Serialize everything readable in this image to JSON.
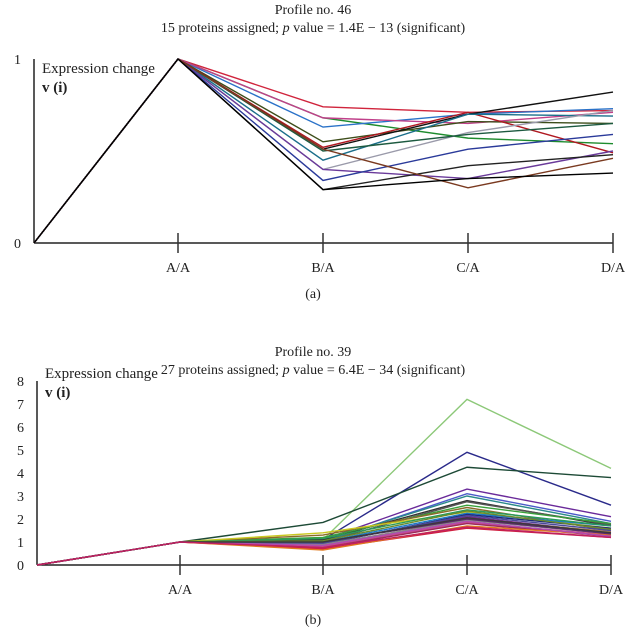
{
  "chart_data": [
    {
      "type": "line",
      "panel_label": "(a)",
      "title": "Profile no. 46",
      "subtitle_prefix": "15 proteins assigned; ",
      "subtitle_p": "p",
      "subtitle_suffix": " value = 1.4E − 13 (significant)",
      "ylabel": "Expression change",
      "ylabel2": "v (i)",
      "ylim": [
        0,
        1
      ],
      "yticks": [
        "0",
        "1"
      ],
      "categories": [
        "",
        "A/A",
        "B/A",
        "C/A",
        "D/A"
      ],
      "series": [
        {
          "color": "#d0243c",
          "values": [
            0,
            1,
            0.74,
            0.71,
            0.72
          ]
        },
        {
          "color": "#1e8c2e",
          "values": [
            0,
            1,
            0.68,
            0.57,
            0.54
          ]
        },
        {
          "color": "#2a72c8",
          "values": [
            0,
            1,
            0.63,
            0.7,
            0.73
          ]
        },
        {
          "color": "#c0408a",
          "values": [
            0,
            1,
            0.68,
            0.65,
            0.71
          ]
        },
        {
          "color": "#3d4d1a",
          "values": [
            0,
            1,
            0.55,
            0.66,
            0.65
          ]
        },
        {
          "color": "#b01820",
          "values": [
            0,
            1,
            0.52,
            0.71,
            0.49
          ]
        },
        {
          "color": "#111111",
          "values": [
            0,
            1,
            0.51,
            0.7,
            0.82
          ]
        },
        {
          "color": "#1a6e8a",
          "values": [
            0,
            1,
            0.45,
            0.7,
            0.69
          ]
        },
        {
          "color": "#9a9aaa",
          "values": [
            0,
            1,
            0.4,
            0.6,
            0.72
          ]
        },
        {
          "color": "#1d5a40",
          "values": [
            0,
            1,
            0.5,
            0.59,
            0.65
          ]
        },
        {
          "color": "#6a3a9a",
          "values": [
            0,
            1,
            0.4,
            0.35,
            0.5
          ]
        },
        {
          "color": "#2a3a9a",
          "values": [
            0,
            1,
            0.34,
            0.51,
            0.59
          ]
        },
        {
          "color": "#222222",
          "values": [
            0,
            1,
            0.29,
            0.42,
            0.48
          ]
        },
        {
          "color": "#7a3a20",
          "values": [
            0,
            1,
            0.51,
            0.3,
            0.46
          ]
        },
        {
          "color": "#000000",
          "values": [
            0,
            1,
            0.29,
            0.35,
            0.38
          ]
        }
      ]
    },
    {
      "type": "line",
      "panel_label": "(b)",
      "title": "Profile no. 39",
      "subtitle_prefix": "27 proteins assigned; ",
      "subtitle_p": "p",
      "subtitle_suffix": " value = 6.4E − 34 (significant)",
      "ylabel": "Expression change",
      "ylabel2": "v (i)",
      "ylim": [
        0,
        8
      ],
      "yticks": [
        "0",
        "1",
        "2",
        "3",
        "4",
        "5",
        "6",
        "7",
        "8"
      ],
      "categories": [
        "",
        "A/A",
        "B/A",
        "C/A",
        "D/A"
      ],
      "series": [
        {
          "color": "#8cc878",
          "values": [
            0,
            1,
            1.1,
            7.2,
            4.2
          ]
        },
        {
          "color": "#2a2a8a",
          "values": [
            0,
            1,
            1.1,
            4.9,
            2.6
          ]
        },
        {
          "color": "#1d4a36",
          "values": [
            0,
            1,
            1.85,
            4.25,
            3.8
          ]
        },
        {
          "color": "#6a2a9a",
          "values": [
            0,
            1,
            1.1,
            3.3,
            2.1
          ]
        },
        {
          "color": "#4a5ac8",
          "values": [
            0,
            1,
            1.0,
            3.1,
            1.9
          ]
        },
        {
          "color": "#2a8a8a",
          "values": [
            0,
            1,
            1.05,
            3.0,
            1.8
          ]
        },
        {
          "color": "#333333",
          "values": [
            0,
            1,
            1.1,
            2.8,
            1.7
          ]
        },
        {
          "color": "#555555",
          "values": [
            0,
            1,
            1.0,
            2.75,
            1.75
          ]
        },
        {
          "color": "#3aa03a",
          "values": [
            0,
            1,
            1.2,
            2.6,
            1.8
          ]
        },
        {
          "color": "#8a6a2a",
          "values": [
            0,
            1,
            1.3,
            2.5,
            1.5
          ]
        },
        {
          "color": "#c8c820",
          "values": [
            0,
            1,
            1.4,
            2.3,
            1.6
          ]
        },
        {
          "color": "#1a7ac8",
          "values": [
            0,
            1,
            1.0,
            2.25,
            1.7
          ]
        },
        {
          "color": "#1e2a7a",
          "values": [
            0,
            1,
            0.9,
            2.2,
            1.6
          ]
        },
        {
          "color": "#7a2a8a",
          "values": [
            0,
            1,
            0.95,
            2.1,
            1.4
          ]
        },
        {
          "color": "#aa7a4a",
          "values": [
            0,
            1,
            0.85,
            2.0,
            1.45
          ]
        },
        {
          "color": "#888888",
          "values": [
            0,
            1,
            0.9,
            1.95,
            1.35
          ]
        },
        {
          "color": "#c84a8a",
          "values": [
            0,
            1,
            0.8,
            1.85,
            1.3
          ]
        },
        {
          "color": "#9a2a5a",
          "values": [
            0,
            1,
            0.75,
            1.8,
            1.25
          ]
        },
        {
          "color": "#d02040",
          "values": [
            0,
            1,
            0.7,
            1.6,
            1.2
          ]
        },
        {
          "color": "#e07a20",
          "values": [
            0,
            1,
            0.65,
            1.7,
            1.3
          ]
        },
        {
          "color": "#5a2a6a",
          "values": [
            0,
            1,
            1.0,
            2.0,
            1.35
          ]
        },
        {
          "color": "#2a9a5a",
          "values": [
            0,
            1,
            1.15,
            2.4,
            1.7
          ]
        },
        {
          "color": "#4a4a9a",
          "values": [
            0,
            1,
            0.95,
            2.15,
            1.5
          ]
        },
        {
          "color": "#6a8a2a",
          "values": [
            0,
            1,
            1.05,
            2.35,
            1.55
          ]
        },
        {
          "color": "#b04ab0",
          "values": [
            0,
            1,
            0.85,
            1.9,
            1.25
          ]
        },
        {
          "color": "#3a3a3a",
          "values": [
            0,
            1,
            1.0,
            2.05,
            1.4
          ]
        },
        {
          "color": "#c02060",
          "values": [
            0,
            1,
            0.75,
            1.65,
            1.2
          ]
        }
      ]
    }
  ]
}
